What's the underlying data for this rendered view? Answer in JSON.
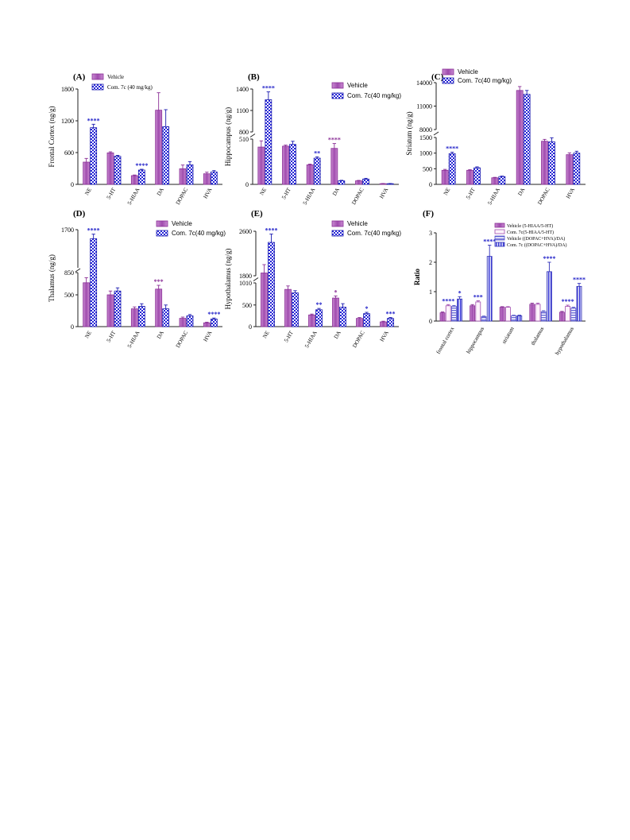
{
  "chart_data": [
    {
      "panel": "(A)",
      "type": "bar",
      "ylabel": "Frontal Cortex (ng/g)",
      "categories": [
        "NE",
        "5-HT",
        "5-HIAA",
        "DA",
        "DOPAC",
        "HVA"
      ],
      "series": [
        {
          "name": "Vehicle",
          "values": [
            420,
            595,
            165,
            1400,
            295,
            200
          ],
          "errors": [
            70,
            20,
            12,
            330,
            70,
            30
          ]
        },
        {
          "name": "Com. 7c (40 mg/kg)",
          "values": [
            1070,
            530,
            270,
            1090,
            370,
            235
          ],
          "errors": [
            65,
            18,
            15,
            320,
            60,
            25
          ]
        }
      ],
      "yticks": [
        "0",
        "600",
        "1200",
        "1800"
      ],
      "significance": [
        {
          "category": 0,
          "text": "****"
        },
        {
          "category": 2,
          "text": "****"
        }
      ]
    },
    {
      "panel": "(B)",
      "type": "bar",
      "ylabel": "Hippocampus (ng/g)",
      "categories": [
        "NE",
        "5-HT",
        "5-HIAA",
        "DA",
        "DOPAC",
        "HVA"
      ],
      "series": [
        {
          "name": "Vehicle",
          "values": [
            420,
            430,
            220,
            405,
            40,
            8
          ],
          "errors": [
            70,
            12,
            8,
            55,
            5,
            2
          ]
        },
        {
          "name": "Com. 7c(40 mg/kg)",
          "values": [
            1250,
            450,
            295,
            40,
            60,
            8
          ],
          "errors": [
            110,
            35,
            15,
            6,
            8,
            2
          ]
        }
      ],
      "yticks": [
        "0",
        "510",
        "800",
        "1100",
        "1400"
      ],
      "significance": [
        {
          "category": 0,
          "text": "****"
        },
        {
          "category": 2,
          "text": "**"
        },
        {
          "category": 3,
          "text": "****"
        }
      ]
    },
    {
      "panel": "(C)",
      "type": "bar",
      "ylabel": "Striatum (ng/g)",
      "categories": [
        "NE",
        "5-HT",
        "5-HIAA",
        "DA",
        "DOPAC",
        "HVA"
      ],
      "series": [
        {
          "name": "Vehicle",
          "values": [
            450,
            450,
            210,
            13000,
            1380,
            950
          ],
          "errors": [
            30,
            20,
            15,
            500,
            60,
            60
          ]
        },
        {
          "name": "Com. 7c(40 mg/kg)",
          "values": [
            980,
            530,
            250,
            12500,
            1360,
            1000
          ],
          "errors": [
            50,
            30,
            15,
            500,
            130,
            60
          ]
        }
      ],
      "yticks": [
        "0",
        "500",
        "1000",
        "1500",
        "8000",
        "11000",
        "14000"
      ],
      "significance": [
        {
          "category": 0,
          "text": "****"
        }
      ]
    },
    {
      "panel": "(D)",
      "type": "bar",
      "ylabel": "Thalamus (ng/g)",
      "categories": [
        "NE",
        "5-HT",
        "5-HIAA",
        "DA",
        "DOPAC",
        "HVA"
      ],
      "series": [
        {
          "name": "Vehicle",
          "values": [
            690,
            500,
            280,
            590,
            130,
            60
          ],
          "errors": [
            80,
            60,
            30,
            60,
            20,
            10
          ]
        },
        {
          "name": "Com. 7c(40 mg/kg)",
          "values": [
            1500,
            560,
            320,
            280,
            170,
            120
          ],
          "errors": [
            100,
            50,
            40,
            60,
            20,
            15
          ]
        }
      ],
      "yticks": [
        "0",
        "500",
        "850",
        "1700"
      ],
      "significance": [
        {
          "category": 0,
          "text": "****"
        },
        {
          "category": 3,
          "text": "***"
        },
        {
          "category": 5,
          "text": "****"
        }
      ]
    },
    {
      "panel": "(E)",
      "type": "bar",
      "ylabel": "Hypothalamus (ng/g)",
      "categories": [
        "NE",
        "5-HT",
        "5-HIAA",
        "DA",
        "DOPAC",
        "HVA"
      ],
      "series": [
        {
          "name": "Vehicle",
          "values": [
            1850,
            860,
            270,
            660,
            190,
            110
          ],
          "errors": [
            150,
            80,
            20,
            50,
            20,
            15
          ]
        },
        {
          "name": "Com. 7c(40 mg/kg)",
          "values": [
            2400,
            780,
            390,
            450,
            300,
            190
          ],
          "errors": [
            150,
            50,
            30,
            80,
            30,
            20
          ]
        }
      ],
      "yticks": [
        "0",
        "500",
        "1010",
        "1800",
        "2600"
      ],
      "significance": [
        {
          "category": 0,
          "text": "****"
        },
        {
          "category": 2,
          "text": "**"
        },
        {
          "category": 3,
          "text": "*"
        },
        {
          "category": 4,
          "text": "*"
        },
        {
          "category": 5,
          "text": "***"
        }
      ]
    },
    {
      "panel": "(F)",
      "type": "bar",
      "ylabel": "Ratio",
      "categories": [
        "frontal cortex",
        "hippocampus",
        "striatum",
        "thalamus",
        "hypothalamus"
      ],
      "series": [
        {
          "name": "Vehicle (5-HIAA/5-HT)",
          "values": [
            0.28,
            0.52,
            0.47,
            0.57,
            0.3
          ],
          "errors": [
            0.03,
            0.04,
            0.02,
            0.04,
            0.03
          ]
        },
        {
          "name": "Com. 7c(5-HIAA/5-HT)",
          "values": [
            0.52,
            0.65,
            0.47,
            0.57,
            0.5
          ],
          "errors": [
            0.04,
            0.04,
            0.02,
            0.04,
            0.04
          ]
        },
        {
          "name": "Vehicle ((DOPAC+HVA)/DA)",
          "values": [
            0.5,
            0.15,
            0.18,
            0.32,
            0.44
          ],
          "errors": [
            0.03,
            0.02,
            0.02,
            0.03,
            0.03
          ]
        },
        {
          "name": "Com. 7c ((DOPAC+HVA)/DA)",
          "values": [
            0.75,
            2.2,
            0.18,
            1.68,
            1.18
          ],
          "errors": [
            0.08,
            0.38,
            0.02,
            0.32,
            0.1
          ]
        }
      ],
      "yticks": [
        "0",
        "1",
        "2",
        "3"
      ],
      "ylim": [
        0,
        3
      ],
      "significance": [
        {
          "category": 0,
          "bar": 1,
          "text": "****"
        },
        {
          "category": 0,
          "bar": 3,
          "text": "*"
        },
        {
          "category": 1,
          "bar": 1,
          "text": "***"
        },
        {
          "category": 1,
          "bar": 3,
          "text": "****"
        },
        {
          "category": 3,
          "bar": 3,
          "text": "****"
        },
        {
          "category": 4,
          "bar": 1,
          "text": "****"
        },
        {
          "category": 4,
          "bar": 3,
          "text": "****"
        }
      ]
    }
  ],
  "colors": {
    "vehicle": "#b463bf",
    "compound": "#2424d6",
    "axis": "#222222"
  }
}
